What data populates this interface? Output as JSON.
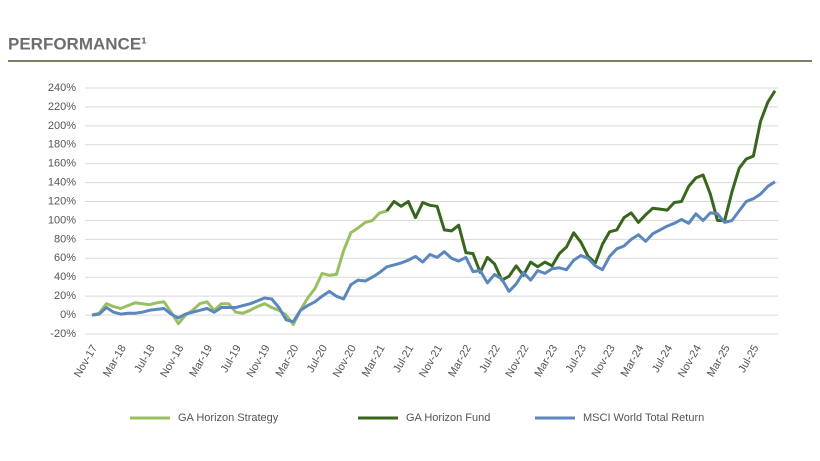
{
  "chart_data": {
    "type": "line",
    "title": "PERFORMANCE¹",
    "categories": [
      "Nov-17",
      null,
      null,
      null,
      "Mar-18",
      null,
      null,
      null,
      "Jul-18",
      null,
      null,
      null,
      "Nov-18",
      null,
      null,
      null,
      "Mar-19",
      null,
      null,
      null,
      "Jul-19",
      null,
      null,
      null,
      "Nov-19",
      null,
      null,
      null,
      "Mar-20",
      null,
      null,
      null,
      "Jul-20",
      null,
      null,
      null,
      "Nov-20",
      null,
      null,
      null,
      "Mar-21",
      null,
      null,
      null,
      "Jul-21",
      null,
      null,
      null,
      "Nov-21",
      null,
      null,
      null,
      "Mar-22",
      null,
      null,
      null,
      "Jul-22",
      null,
      null,
      null,
      "Nov-22",
      null,
      null,
      null,
      "Mar-23",
      null,
      null,
      null,
      "Jul-23",
      null,
      null,
      null,
      "Nov-23",
      null,
      null,
      null,
      "Mar-24",
      null,
      null,
      null,
      "Jul-24",
      null,
      null,
      null,
      "Nov-24",
      null,
      null,
      null,
      "Mar-25",
      null,
      null,
      null,
      "Jul-25",
      null,
      null,
      null
    ],
    "series": [
      {
        "name": "GA Horizon Strategy",
        "color": "#98c063",
        "values": [
          0,
          2,
          12,
          9,
          7,
          10,
          13,
          12,
          11,
          13,
          14,
          3,
          -9,
          0,
          5,
          12,
          14,
          5,
          12,
          12,
          3,
          2,
          5,
          9,
          12,
          8,
          5,
          0,
          -10,
          5,
          18,
          28,
          44,
          42,
          43,
          68,
          87,
          92,
          98,
          100,
          108,
          110,
          null,
          null,
          null,
          null,
          null,
          null,
          null,
          null,
          null,
          null,
          null,
          null,
          null,
          null,
          null,
          null,
          null,
          null,
          null,
          null,
          null,
          null,
          null,
          null,
          null,
          null,
          null,
          null,
          null,
          null,
          null,
          null,
          null,
          null,
          null,
          null,
          null,
          null,
          null,
          null,
          null,
          null,
          null,
          null,
          null,
          null,
          null,
          null,
          null,
          null,
          null,
          null,
          null,
          null
        ]
      },
      {
        "name": "GA Horizon Fund",
        "color": "#38661c",
        "values": [
          null,
          null,
          null,
          null,
          null,
          null,
          null,
          null,
          null,
          null,
          null,
          null,
          null,
          null,
          null,
          null,
          null,
          null,
          null,
          null,
          null,
          null,
          null,
          null,
          null,
          null,
          null,
          null,
          null,
          null,
          null,
          null,
          null,
          null,
          null,
          null,
          null,
          null,
          null,
          null,
          null,
          110,
          120,
          115,
          120,
          103,
          119,
          116,
          115,
          90,
          89,
          95,
          66,
          65,
          45,
          61,
          54,
          37,
          41,
          52,
          42,
          56,
          51,
          56,
          52,
          65,
          72,
          87,
          77,
          62,
          55,
          75,
          88,
          90,
          103,
          108,
          98,
          106,
          113,
          112,
          111,
          119,
          120,
          136,
          145,
          148,
          128,
          100,
          100,
          130,
          155,
          165,
          168,
          205,
          225,
          237
        ]
      },
      {
        "name": "MSCI World Total Return",
        "color": "#5b87bd",
        "values": [
          0,
          1,
          8,
          3,
          1,
          2,
          2,
          3,
          5,
          6,
          7,
          1,
          -3,
          1,
          3,
          5,
          7,
          3,
          8,
          8,
          8,
          10,
          12,
          15,
          18,
          17,
          8,
          -5,
          -7,
          5,
          10,
          14,
          20,
          25,
          20,
          17,
          32,
          37,
          36,
          40,
          45,
          51,
          53,
          55,
          58,
          62,
          56,
          64,
          61,
          67,
          60,
          57,
          61,
          46,
          47,
          34,
          43,
          38,
          25,
          33,
          45,
          37,
          47,
          44,
          49,
          50,
          48,
          58,
          63,
          60,
          52,
          48,
          62,
          70,
          73,
          80,
          85,
          78,
          86,
          90,
          94,
          97,
          101,
          97,
          107,
          100,
          108,
          107,
          98,
          100,
          110,
          120,
          123,
          128,
          136,
          141
        ]
      }
    ],
    "ylim": [
      -20,
      240
    ],
    "yticks": [
      {
        "value": -20,
        "label": "-20%"
      },
      {
        "value": 0,
        "label": "0%"
      },
      {
        "value": 20,
        "label": "20%"
      },
      {
        "value": 40,
        "label": "40%"
      },
      {
        "value": 60,
        "label": "60%"
      },
      {
        "value": 80,
        "label": "80%"
      },
      {
        "value": 100,
        "label": "100%"
      },
      {
        "value": 120,
        "label": "120%"
      },
      {
        "value": 140,
        "label": "140%"
      },
      {
        "value": 160,
        "label": "160%"
      },
      {
        "value": 180,
        "label": "180%"
      },
      {
        "value": 200,
        "label": "200%"
      },
      {
        "value": 220,
        "label": "220%"
      },
      {
        "value": 240,
        "label": "240%"
      }
    ],
    "grid": true,
    "legend": "bottom"
  }
}
